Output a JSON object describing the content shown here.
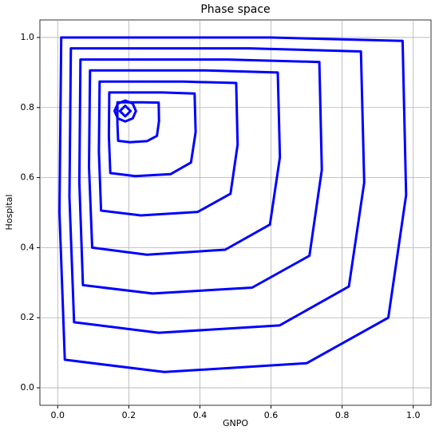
{
  "chart_data": {
    "type": "streamplot",
    "title": "Phase space",
    "x_label": "GNPO",
    "y_label": "Hospital",
    "color": "#0000ff",
    "grid": true,
    "xlim": [
      -0.05,
      1.05
    ],
    "ylim": [
      -0.05,
      1.05
    ],
    "xticks": [
      {
        "value": 0,
        "label": "0.0"
      },
      {
        "value": 0.2,
        "label": "0.2"
      },
      {
        "value": 0.4,
        "label": "0.4"
      },
      {
        "value": 0.6,
        "label": "0.6"
      },
      {
        "value": 0.8,
        "label": "0.8"
      },
      {
        "value": 1,
        "label": "1.0"
      }
    ],
    "yticks": [
      {
        "value": 0,
        "label": "0.0"
      },
      {
        "value": 0.2,
        "label": "0.2"
      },
      {
        "value": 0.4,
        "label": "0.4"
      },
      {
        "value": 0.6,
        "label": "0.6"
      },
      {
        "value": 0.8,
        "label": "0.8"
      },
      {
        "value": 1,
        "label": "1.0"
      }
    ],
    "series": [
      {
        "x": [
          0.98,
          0.97,
          0.6,
          0.01,
          0.005,
          0.02,
          0.3,
          0.7,
          0.93,
          0.98
        ],
        "values": [
          0.55,
          0.99,
          1.0,
          1.0,
          0.5,
          0.08,
          0.045,
          0.07,
          0.2,
          0.55
        ]
      },
      {
        "x": [
          0.862,
          0.853,
          0.539,
          0.037,
          0.033,
          0.046,
          0.284,
          0.624,
          0.819,
          0.862
        ],
        "values": [
          0.586,
          0.96,
          0.969,
          0.969,
          0.544,
          0.187,
          0.157,
          0.178,
          0.289,
          0.586
        ]
      },
      {
        "x": [
          0.743,
          0.736,
          0.477,
          0.064,
          0.061,
          0.071,
          0.267,
          0.547,
          0.708,
          0.743
        ],
        "values": [
          0.622,
          0.93,
          0.937,
          0.937,
          0.587,
          0.293,
          0.269,
          0.286,
          0.377,
          0.622
        ]
      },
      {
        "x": [
          0.625,
          0.619,
          0.416,
          0.091,
          0.088,
          0.097,
          0.251,
          0.471,
          0.597,
          0.625
        ],
        "values": [
          0.658,
          0.9,
          0.906,
          0.906,
          0.631,
          0.4,
          0.38,
          0.394,
          0.466,
          0.658
        ]
      },
      {
        "x": [
          0.506,
          0.502,
          0.354,
          0.118,
          0.116,
          0.122,
          0.234,
          0.394,
          0.486,
          0.506
        ],
        "values": [
          0.694,
          0.87,
          0.874,
          0.874,
          0.674,
          0.506,
          0.492,
          0.502,
          0.554,
          0.694
        ]
      },
      {
        "x": [
          0.388,
          0.385,
          0.293,
          0.145,
          0.144,
          0.148,
          0.218,
          0.318,
          0.375,
          0.388
        ],
        "values": [
          0.73,
          0.84,
          0.843,
          0.843,
          0.718,
          0.613,
          0.604,
          0.61,
          0.643,
          0.73
        ]
      },
      {
        "x": [
          0.285,
          0.284,
          0.239,
          0.168,
          0.168,
          0.17,
          0.203,
          0.251,
          0.279,
          0.285
        ],
        "values": [
          0.761,
          0.814,
          0.815,
          0.815,
          0.755,
          0.705,
          0.701,
          0.704,
          0.719,
          0.761
        ]
      },
      {
        "x": [
          0.22,
          0.211,
          0.19,
          0.169,
          0.16,
          0.169,
          0.19,
          0.211,
          0.22
        ],
        "values": [
          0.79,
          0.811,
          0.82,
          0.811,
          0.79,
          0.769,
          0.76,
          0.769,
          0.79
        ]
      },
      {
        "x": [
          0.205,
          0.19,
          0.175,
          0.19,
          0.205
        ],
        "values": [
          0.79,
          0.805,
          0.79,
          0.775,
          0.79
        ]
      }
    ]
  }
}
